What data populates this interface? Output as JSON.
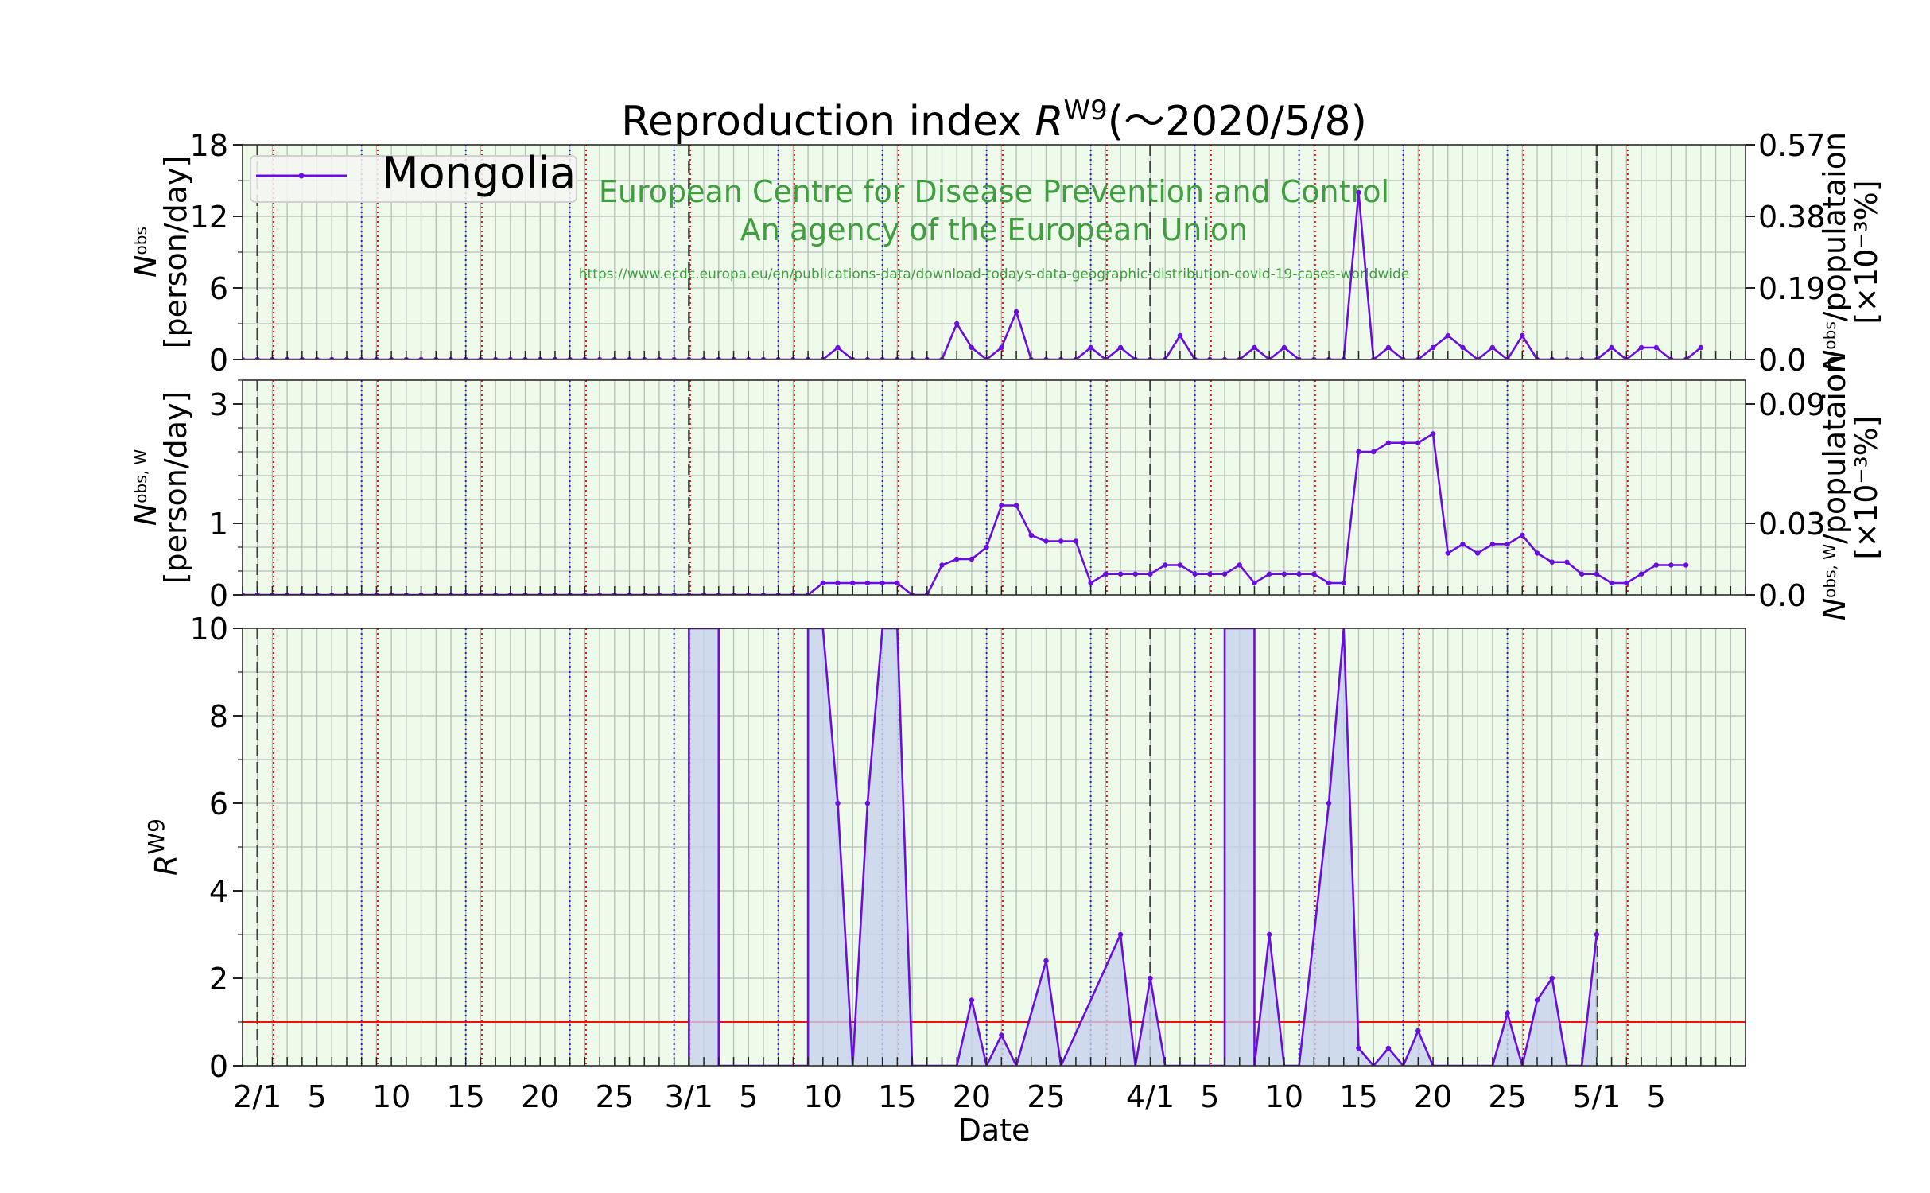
{
  "chart_data": {
    "type": "line",
    "title": "Reproduction index R^W9 (～2020/5/8)",
    "title_parts": {
      "main": "Reproduction index ",
      "var": "R",
      "sup": "W9",
      "tail": "(～2020/5/8)"
    },
    "legend": {
      "label": "Mongolia",
      "placement": "top-left"
    },
    "watermark": {
      "line1": "European Centre for Disease Prevention and Control",
      "line2": "An agency of the European Union",
      "url": "https://www.ecdc.europa.eu/en/publications-data/download-todays-data-geographic-distribution-covid-19-cases-worldwide"
    },
    "xlabel": "Date",
    "x_start": "2020-01-31",
    "x_end": "2020-05-11",
    "x_ticklabels": [
      {
        "date": "2020-02-01",
        "label": "2/1"
      },
      {
        "date": "2020-02-05",
        "label": "5"
      },
      {
        "date": "2020-02-10",
        "label": "10"
      },
      {
        "date": "2020-02-15",
        "label": "15"
      },
      {
        "date": "2020-02-20",
        "label": "20"
      },
      {
        "date": "2020-02-25",
        "label": "25"
      },
      {
        "date": "2020-03-01",
        "label": "3/1"
      },
      {
        "date": "2020-03-05",
        "label": "5"
      },
      {
        "date": "2020-03-10",
        "label": "10"
      },
      {
        "date": "2020-03-15",
        "label": "15"
      },
      {
        "date": "2020-03-20",
        "label": "20"
      },
      {
        "date": "2020-03-25",
        "label": "25"
      },
      {
        "date": "2020-04-01",
        "label": "4/1"
      },
      {
        "date": "2020-04-05",
        "label": "5"
      },
      {
        "date": "2020-04-10",
        "label": "10"
      },
      {
        "date": "2020-04-15",
        "label": "15"
      },
      {
        "date": "2020-04-20",
        "label": "20"
      },
      {
        "date": "2020-04-25",
        "label": "25"
      },
      {
        "date": "2020-05-01",
        "label": "5/1"
      },
      {
        "date": "2020-05-05",
        "label": "5"
      }
    ],
    "month_lines": [
      "2020-02-01",
      "2020-03-01",
      "2020-04-01",
      "2020-05-01"
    ],
    "sunday_lines": [
      "2020-02-02",
      "2020-02-09",
      "2020-02-16",
      "2020-02-23",
      "2020-03-01",
      "2020-03-08",
      "2020-03-15",
      "2020-03-22",
      "2020-03-29",
      "2020-04-05",
      "2020-04-12",
      "2020-04-19",
      "2020-04-26",
      "2020-05-03"
    ],
    "saturday_lines": [
      "2020-02-08",
      "2020-02-15",
      "2020-02-22",
      "2020-02-29",
      "2020-03-07",
      "2020-03-14",
      "2020-03-21",
      "2020-03-28",
      "2020-04-04",
      "2020-04-11",
      "2020-04-18",
      "2020-04-25"
    ],
    "colors": {
      "series": "#6a0de0",
      "sunday": "#e01010",
      "saturday": "#2020d0",
      "month": "#404040",
      "threshold": "#ee1111",
      "background": "#eefbea",
      "fill": "#c7d2ee",
      "watermark": "#3f9f3f"
    },
    "panels": [
      {
        "id": "daily",
        "ylabel_var": "N",
        "ylabel_sup": "obs",
        "ylabel_unit": "[person/day]",
        "ylim": [
          0,
          18
        ],
        "yticks": [
          0,
          6,
          12,
          18
        ],
        "y2label_main": "N",
        "y2label_sup": "obs",
        "y2label_rest": "/populataion",
        "y2label_unit": "[×10⁻³%]",
        "y2ticks": [
          "0.0",
          "0.19",
          "0.38",
          "0.57"
        ],
        "series": [
          {
            "name": "Mongolia",
            "x_start": "2020-01-31",
            "values": [
              0,
              0,
              0,
              0,
              0,
              0,
              0,
              0,
              0,
              0,
              0,
              0,
              0,
              0,
              0,
              0,
              0,
              0,
              0,
              0,
              0,
              0,
              0,
              0,
              0,
              0,
              0,
              0,
              0,
              0,
              0,
              0,
              0,
              0,
              0,
              0,
              0,
              0,
              0,
              0,
              1,
              0,
              0,
              0,
              0,
              0,
              0,
              0,
              3,
              1,
              0,
              1,
              4,
              0,
              0,
              0,
              0,
              1,
              0,
              1,
              0,
              0,
              0,
              2,
              0,
              0,
              0,
              0,
              1,
              0,
              1,
              0,
              0,
              0,
              0,
              14,
              0,
              1,
              0,
              0,
              1,
              2,
              1,
              0,
              1,
              0,
              2,
              0,
              0,
              0,
              0,
              0,
              1,
              0,
              1,
              1,
              0,
              0,
              1
            ]
          }
        ]
      },
      {
        "id": "weekly",
        "ylabel_var": "N",
        "ylabel_sup": "obs, W",
        "ylabel_unit": "[person/day]",
        "ylim": [
          0,
          3.6
        ],
        "yticks": [
          0,
          1,
          3
        ],
        "ytick_positions": [
          0,
          1.2,
          3.2
        ],
        "y2label_main": "N",
        "y2label_sup": "obs, W",
        "y2label_rest": "/populataion",
        "y2label_unit": "[×10⁻³%]",
        "y2ticks": [
          "0.0",
          "0.03",
          "0.09"
        ],
        "series": [
          {
            "name": "Mongolia",
            "x_start": "2020-01-31",
            "values": [
              0,
              0,
              0,
              0,
              0,
              0,
              0,
              0,
              0,
              0,
              0,
              0,
              0,
              0,
              0,
              0,
              0,
              0,
              0,
              0,
              0,
              0,
              0,
              0,
              0,
              0,
              0,
              0,
              0,
              0,
              0,
              0,
              0,
              0,
              0,
              0,
              0,
              0,
              0,
              0.2,
              0.2,
              0.2,
              0.2,
              0.2,
              0.2,
              0,
              0,
              0.5,
              0.6,
              0.6,
              0.8,
              1.5,
              1.5,
              1.0,
              0.9,
              0.9,
              0.9,
              0.2,
              0.35,
              0.35,
              0.35,
              0.35,
              0.5,
              0.5,
              0.35,
              0.35,
              0.35,
              0.5,
              0.2,
              0.35,
              0.35,
              0.35,
              0.35,
              0.2,
              0.2,
              2.4,
              2.4,
              2.55,
              2.55,
              2.55,
              2.7,
              0.7,
              0.85,
              0.7,
              0.85,
              0.85,
              1.0,
              0.7,
              0.55,
              0.55,
              0.35,
              0.35,
              0.2,
              0.2,
              0.35,
              0.5,
              0.5,
              0.5
            ]
          }
        ]
      },
      {
        "id": "rindex",
        "ylabel_var": "R",
        "ylabel_sup": "W9",
        "ylim": [
          0,
          10
        ],
        "yticks": [
          0,
          2,
          4,
          6,
          8,
          10
        ],
        "threshold": 1,
        "series": [
          {
            "name": "Mongolia",
            "points": [
              [
                "2020-03-01",
                0
              ],
              [
                "2020-03-01",
                10
              ],
              [
                "2020-03-02",
                10
              ],
              [
                "2020-03-03",
                10
              ],
              [
                "2020-03-03",
                0
              ],
              [
                "2020-03-09",
                0
              ],
              [
                "2020-03-09",
                10
              ],
              [
                "2020-03-10",
                10
              ],
              [
                "2020-03-11",
                6
              ],
              [
                "2020-03-12",
                0
              ],
              [
                "2020-03-13",
                6
              ],
              [
                "2020-03-14",
                10
              ],
              [
                "2020-03-15",
                10
              ],
              [
                "2020-03-16",
                0
              ],
              [
                "2020-03-19",
                0
              ],
              [
                "2020-03-20",
                1.5
              ],
              [
                "2020-03-21",
                0
              ],
              [
                "2020-03-22",
                0.7
              ],
              [
                "2020-03-23",
                0
              ],
              [
                "2020-03-25",
                2.4
              ],
              [
                "2020-03-26",
                0
              ],
              [
                "2020-03-30",
                3
              ],
              [
                "2020-03-31",
                0
              ],
              [
                "2020-04-01",
                2
              ],
              [
                "2020-04-02",
                0
              ],
              [
                "2020-04-06",
                0
              ],
              [
                "2020-04-06",
                10
              ],
              [
                "2020-04-07",
                10
              ],
              [
                "2020-04-08",
                10
              ],
              [
                "2020-04-08",
                0
              ],
              [
                "2020-04-09",
                3
              ],
              [
                "2020-04-10",
                0
              ],
              [
                "2020-04-11",
                0
              ],
              [
                "2020-04-13",
                6
              ],
              [
                "2020-04-14",
                10
              ],
              [
                "2020-04-15",
                0.4
              ],
              [
                "2020-04-16",
                0
              ],
              [
                "2020-04-17",
                0.4
              ],
              [
                "2020-04-18",
                0
              ],
              [
                "2020-04-19",
                0.8
              ],
              [
                "2020-04-20",
                0
              ],
              [
                "2020-04-24",
                0
              ],
              [
                "2020-04-25",
                1.2
              ],
              [
                "2020-04-26",
                0
              ],
              [
                "2020-04-27",
                1.5
              ],
              [
                "2020-04-28",
                2
              ],
              [
                "2020-04-29",
                0
              ],
              [
                "2020-04-30",
                0
              ],
              [
                "2020-05-01",
                3
              ]
            ]
          }
        ]
      }
    ]
  }
}
